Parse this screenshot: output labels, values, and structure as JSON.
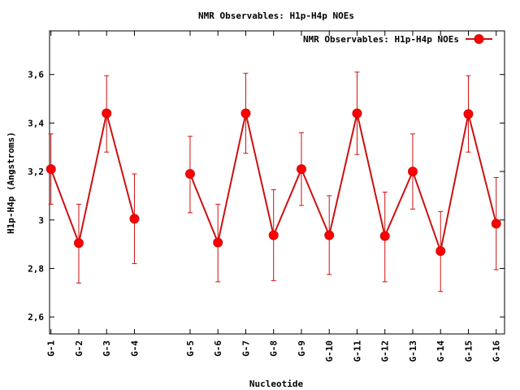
{
  "chart_data": {
    "type": "line",
    "title": "NMR Observables: H1p-H4p NOEs",
    "xlabel": "Nucleotide",
    "ylabel": "H1p-H4p (Angstroms)",
    "ylim": [
      2.53,
      3.78
    ],
    "yticks": [
      {
        "value": 2.6,
        "label": "2,6"
      },
      {
        "value": 2.8,
        "label": "2,8"
      },
      {
        "value": 3.0,
        "label": "3"
      },
      {
        "value": 3.2,
        "label": "3,2"
      },
      {
        "value": 3.4,
        "label": "3,4"
      },
      {
        "value": 3.6,
        "label": "3,6"
      }
    ],
    "xlim": [
      0.95,
      17.3
    ],
    "grid": false,
    "legend_position": "top-right",
    "color": "#ff0000",
    "line_color": "#cc1111",
    "series": [
      {
        "name": "NMR Observables: H1p-H4p NOEs",
        "segments": [
          [
            {
              "pos": 1,
              "label": "G-1",
              "y": 3.21,
              "lo": 3.065,
              "hi": 3.355
            },
            {
              "pos": 2,
              "label": "G-2",
              "y": 2.905,
              "lo": 2.74,
              "hi": 3.065
            },
            {
              "pos": 3,
              "label": "G-3",
              "y": 3.44,
              "lo": 3.28,
              "hi": 3.595
            },
            {
              "pos": 4,
              "label": "G-4",
              "y": 3.005,
              "lo": 2.82,
              "hi": 3.19
            }
          ],
          [
            {
              "pos": 6,
              "label": "G-5",
              "y": 3.19,
              "lo": 3.03,
              "hi": 3.345
            },
            {
              "pos": 7,
              "label": "G-6",
              "y": 2.907,
              "lo": 2.745,
              "hi": 3.065
            },
            {
              "pos": 8,
              "label": "G-7",
              "y": 3.44,
              "lo": 3.275,
              "hi": 3.605
            },
            {
              "pos": 9,
              "label": "G-8",
              "y": 2.937,
              "lo": 2.75,
              "hi": 3.125
            },
            {
              "pos": 10,
              "label": "G-9",
              "y": 3.21,
              "lo": 3.06,
              "hi": 3.36
            },
            {
              "pos": 11,
              "label": "G-10",
              "y": 2.937,
              "lo": 2.775,
              "hi": 3.1
            },
            {
              "pos": 12,
              "label": "G-11",
              "y": 3.44,
              "lo": 3.27,
              "hi": 3.61
            },
            {
              "pos": 13,
              "label": "G-12",
              "y": 2.934,
              "lo": 2.745,
              "hi": 3.115
            },
            {
              "pos": 14,
              "label": "G-13",
              "y": 3.2,
              "lo": 3.045,
              "hi": 3.355
            },
            {
              "pos": 15,
              "label": "G-14",
              "y": 2.872,
              "lo": 2.705,
              "hi": 3.035
            },
            {
              "pos": 16,
              "label": "G-15",
              "y": 3.437,
              "lo": 3.28,
              "hi": 3.595
            },
            {
              "pos": 17,
              "label": "G-16",
              "y": 2.985,
              "lo": 2.795,
              "hi": 3.175
            }
          ]
        ]
      }
    ]
  }
}
